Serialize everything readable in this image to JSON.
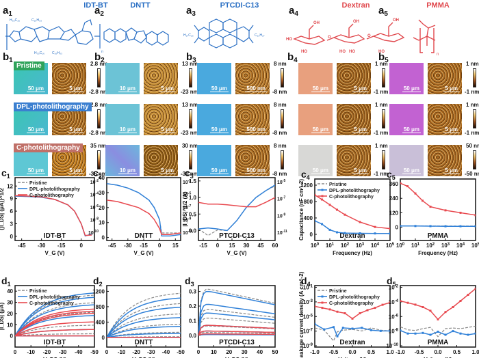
{
  "figure": {
    "row_a": {
      "panels": [
        {
          "label": "a",
          "sub": "1",
          "title": "IDT-BT",
          "color": "#2a6fc4",
          "substituents": [
            "H₃₃C₁₆",
            "C₁₆H₃₃",
            "H₃₃C₁₆",
            "C₁₆H₃₃"
          ],
          "repeat": "n"
        },
        {
          "label": "a",
          "sub": "2",
          "title": "DNTT",
          "color": "#2a6fc4"
        },
        {
          "label": "a",
          "sub": "3",
          "title": "PTCDI-C13",
          "color": "#2a6fc4",
          "substituents": [
            "H₂₇C₁₃",
            "C₁₃H₂₇"
          ]
        },
        {
          "label": "a",
          "sub": "4",
          "title": "Dextran",
          "color": "#e0474c",
          "groups": [
            "OH",
            "HO",
            "HO",
            "HO",
            "HO",
            "HO",
            "OH",
            "OH",
            "O",
            "O"
          ]
        },
        {
          "label": "a",
          "sub": "5",
          "title": "PMMA",
          "color": "#e0474c",
          "repeat": "n"
        }
      ]
    },
    "row_b": {
      "row_tags": [
        "Pristine",
        "DPL-photolithography",
        "C-photolithography"
      ],
      "panels": [
        {
          "label": "b",
          "sub": "1",
          "optical_scale": "50 μm",
          "afm_scale": "5 μm",
          "colorbars": [
            [
              "2.8 nm",
              "-2.8 nm"
            ],
            [
              "2.8 nm",
              "-2.8 nm"
            ],
            [
              "35 nm",
              "-35 nm"
            ]
          ]
        },
        {
          "label": "b",
          "sub": "2",
          "optical_scale": "10 μm",
          "afm_scale": "5 μm",
          "colorbars": [
            [
              "13 nm",
              "-23 nm"
            ],
            [
              "13 nm",
              "-23 nm"
            ],
            [
              "30 nm",
              "-30 nm"
            ]
          ]
        },
        {
          "label": "b",
          "sub": "3",
          "optical_scale": "50 μm",
          "afm_scale": "500 nm",
          "colorbars": [
            [
              "8 nm",
              "-8 nm"
            ],
            [
              "8 nm",
              "-8 nm"
            ],
            [
              "8 nm",
              "-8 nm"
            ]
          ]
        },
        {
          "label": "b",
          "sub": "4",
          "optical_scale": "50 μm",
          "afm_scale": "5 μm",
          "colorbars": [
            [
              "1 nm",
              "-1 nm"
            ],
            [
              "1 nm",
              "-1 nm"
            ],
            [
              "1 nm",
              "-1 nm"
            ]
          ]
        },
        {
          "label": "b",
          "sub": "5",
          "optical_scale": "50 μm",
          "afm_scale": "5 μm",
          "colorbars": [
            [
              "1 nm",
              "-1 nm"
            ],
            [
              "1 nm",
              "-1 nm"
            ],
            [
              "50 nm",
              "-50 nm"
            ]
          ]
        }
      ]
    },
    "legend": {
      "pristine": "Pristine",
      "dpl": "DPL-photolithography",
      "c": "C-photolithography"
    },
    "colors": {
      "pristine": "#888888",
      "dpl": "#2f80d8",
      "c": "#e8494f"
    }
  },
  "chart_data": [
    {
      "id": "c1",
      "type": "line",
      "label": "c",
      "sub": "1",
      "annotation": "IDT-BT",
      "xlabel": "V_G (V)",
      "ylabel": "(|I_DS| (μA))^1/2",
      "xlim": [
        -50,
        10
      ],
      "xticks": [
        -45,
        -30,
        -15,
        0
      ],
      "ylim": [
        -1,
        14
      ],
      "yticks": [
        0,
        3,
        6,
        9,
        12
      ],
      "series": [
        {
          "name": "Pristine",
          "x": [
            -50,
            -40,
            -30,
            -20,
            -10,
            -5,
            0,
            3,
            8
          ],
          "y": [
            9.6,
            9.5,
            9.3,
            8.8,
            7.5,
            6.0,
            3.0,
            0.1,
            0.5
          ]
        },
        {
          "name": "DPL-photolithography",
          "x": [
            -50,
            -40,
            -30,
            -20,
            -10,
            -5,
            0,
            3,
            8
          ],
          "y": [
            9.6,
            9.5,
            9.3,
            8.8,
            7.5,
            6.0,
            3.0,
            0.1,
            0.5
          ]
        },
        {
          "name": "C-photolithography",
          "x": [
            -50,
            -40,
            -30,
            -20,
            -10,
            -5,
            0,
            3,
            8
          ],
          "y": [
            9.7,
            9.6,
            9.4,
            8.8,
            7.5,
            6.0,
            3.0,
            0.2,
            0.3
          ]
        }
      ]
    },
    {
      "id": "c2",
      "type": "line",
      "label": "c",
      "sub": "2",
      "annotation": "DNTT",
      "xlabel": "V_G (V)",
      "ylabel": "",
      "xlim": [
        -50,
        20
      ],
      "xticks": [
        -45,
        -30,
        -15,
        0,
        15
      ],
      "ylim": [
        -2,
        40
      ],
      "yticks": [
        0,
        10,
        20,
        30,
        40
      ],
      "yticks_left_log": [
        "10^-10",
        "10^-8",
        "10^-6",
        "10^-4",
        "10^-2"
      ],
      "yticks_right": [
        "10^-11",
        "10^-9",
        "10^-7",
        "10^-5",
        "10^-3"
      ],
      "series": [
        {
          "name": "Pristine",
          "x": [
            -50,
            -40,
            -30,
            -20,
            -10,
            -5,
            0,
            2,
            10,
            20
          ],
          "y": [
            36,
            35,
            33,
            30,
            25,
            20,
            12,
            3,
            3,
            3
          ]
        },
        {
          "name": "DPL-photolithography",
          "x": [
            -50,
            -40,
            -30,
            -20,
            -10,
            -5,
            0,
            2,
            10,
            20
          ],
          "y": [
            36,
            35,
            33,
            30,
            25,
            20,
            12,
            1,
            1,
            2
          ]
        },
        {
          "name": "C-photolithography",
          "x": [
            -50,
            -40,
            -30,
            -20,
            -10,
            -5,
            0,
            2,
            10,
            20
          ],
          "y": [
            25,
            24,
            22,
            20,
            16,
            12,
            6,
            2,
            2,
            3
          ]
        }
      ]
    },
    {
      "id": "c3",
      "type": "line",
      "label": "c",
      "sub": "3",
      "annotation": "PTCDI-C13",
      "xlabel": "V_G (V)",
      "ylabel": "|I_DS|^1/2 (A)",
      "xlim": [
        -20,
        60
      ],
      "xticks": [
        -15,
        0,
        15,
        30,
        45,
        60
      ],
      "ylim": [
        -0.3,
        1.6
      ],
      "yticks": [
        0.0,
        0.5,
        1.0,
        1.5
      ],
      "yticks_right": [
        "10^-11",
        "10^-9",
        "10^-7",
        "10^-5"
      ],
      "series": [
        {
          "name": "Pristine",
          "x": [
            -20,
            -10,
            0,
            10,
            20,
            30,
            40,
            50,
            60
          ],
          "y": [
            0.05,
            -0.15,
            0.02,
            0.0,
            0.3,
            0.7,
            1.0,
            1.2,
            1.35
          ]
        },
        {
          "name": "DPL-photolithography",
          "x": [
            -20,
            -10,
            0,
            10,
            20,
            30,
            40,
            50,
            60
          ],
          "y": [
            0.05,
            0.08,
            0.05,
            0.0,
            0.3,
            0.7,
            1.0,
            1.2,
            1.38
          ]
        },
        {
          "name": "C-photolithography",
          "x": [
            -20,
            -10,
            0,
            10,
            20,
            30,
            40,
            50,
            60
          ],
          "y": [
            0.85,
            0.8,
            0.8,
            0.78,
            0.75,
            0.72,
            0.72,
            0.85,
            1.0
          ]
        }
      ]
    },
    {
      "id": "c4",
      "type": "line",
      "label": "c",
      "sub": "4",
      "annotation": "Dextran",
      "xlabel": "Frequency (Hz)",
      "ylabel": "Capacitance (nF cm^-2)",
      "xscale": "log",
      "xlim": [
        1,
        100000
      ],
      "xticks": [
        "10^0",
        "10^1",
        "10^2",
        "10^3",
        "10^4",
        "10^5"
      ],
      "ylim": [
        -150,
        1350
      ],
      "yticks": [
        0,
        400,
        800,
        1200
      ],
      "series": [
        {
          "name": "Pristine",
          "x": [
            1,
            3,
            10,
            30,
            100,
            1000,
            10000,
            100000
          ],
          "y": [
            330,
            250,
            110,
            50,
            30,
            25,
            22,
            20
          ]
        },
        {
          "name": "DPL-photolithography",
          "x": [
            1,
            3,
            10,
            30,
            100,
            1000,
            10000,
            100000
          ],
          "y": [
            330,
            250,
            110,
            50,
            30,
            25,
            22,
            20
          ]
        },
        {
          "name": "C-photolithography",
          "x": [
            1,
            3,
            10,
            30,
            100,
            1000,
            10000,
            100000
          ],
          "y": [
            960,
            850,
            720,
            600,
            480,
            300,
            180,
            140
          ]
        }
      ]
    },
    {
      "id": "c5",
      "type": "line",
      "label": "c",
      "sub": "5",
      "annotation": "PMMA",
      "xlabel": "Frequency (Hz)",
      "ylabel": "",
      "xscale": "log",
      "xlim": [
        1,
        100000
      ],
      "xticks": [
        "10^0",
        "10^1",
        "10^2",
        "10^3",
        "10^4",
        "10^5"
      ],
      "ylim": [
        -110,
        400
      ],
      "yticks": [
        0,
        120,
        240,
        360
      ],
      "series": [
        {
          "name": "Pristine",
          "x": [
            1,
            10,
            100,
            1000,
            10000,
            100000
          ],
          "y": [
            10,
            10,
            10,
            10,
            10,
            10
          ]
        },
        {
          "name": "DPL-photolithography",
          "x": [
            1,
            10,
            100,
            1000,
            10000,
            100000
          ],
          "y": [
            10,
            10,
            9,
            8,
            8,
            8
          ]
        },
        {
          "name": "C-photolithography",
          "x": [
            1,
            3,
            10,
            30,
            100,
            1000,
            10000,
            100000
          ],
          "y": [
            365,
            340,
            280,
            220,
            170,
            140,
            120,
            100
          ]
        }
      ]
    },
    {
      "id": "d1",
      "type": "line",
      "label": "d",
      "sub": "1",
      "annotation": "IDT-BT",
      "xlabel": "V_DS (V)",
      "ylabel": "|I_DS| (μA)",
      "xlim": [
        0,
        -50
      ],
      "xticks": [
        0,
        -10,
        -20,
        -30,
        -40,
        -50
      ],
      "ylim": [
        -10,
        45
      ],
      "yticks": [
        0,
        10,
        20,
        30,
        40
      ],
      "series": [
        {
          "name": "Pristine",
          "curves_sat": [
            38,
            31,
            22,
            10,
            2
          ]
        },
        {
          "name": "DPL-photolithography",
          "curves_sat": [
            40,
            36,
            29,
            19,
            6,
            0
          ]
        },
        {
          "name": "C-photolithography",
          "curves_sat": [
            25,
            23,
            21,
            13,
            6,
            0
          ]
        }
      ]
    },
    {
      "id": "d2",
      "type": "line",
      "label": "d",
      "sub": "2",
      "annotation": "DNTT",
      "xlabel": "V_DS (V)",
      "ylabel": "",
      "xlim": [
        0,
        -50
      ],
      "xticks": [
        0,
        -10,
        -20,
        -30,
        -40,
        -50
      ],
      "ylim": [
        -250,
        1350
      ],
      "yticks": [
        0,
        400,
        800,
        1200
      ],
      "series": [
        {
          "name": "Pristine",
          "curves_sat": [
            1200,
            920,
            640,
            360,
            140,
            20
          ]
        },
        {
          "name": "DPL-photolithography",
          "curves_sat": [
            1070,
            820,
            540,
            300,
            110,
            0
          ]
        },
        {
          "name": "C-photolithography",
          "curves_sat": [
            0
          ]
        }
      ]
    },
    {
      "id": "d3",
      "type": "line",
      "label": "d",
      "sub": "3",
      "annotation": "PTCDI-C13",
      "xlabel": "V_DS (V)",
      "ylabel": "",
      "xlim": [
        0,
        50
      ],
      "xticks": [
        0,
        10,
        20,
        30,
        40,
        50
      ],
      "ylim": [
        -0.08,
        0.34
      ],
      "yticks": [
        0.0,
        0.1,
        0.2,
        0.3
      ],
      "series": [
        {
          "name": "Pristine",
          "curves_peak": [
            0.32,
            0.18,
            0.12,
            0.065,
            0.02
          ]
        },
        {
          "name": "DPL-photolithography",
          "curves_peak": [
            0.305,
            0.215,
            0.155,
            0.07,
            0.03,
            0.005
          ]
        },
        {
          "name": "C-photolithography",
          "curves_peak": [
            0.07,
            0.03,
            0.01
          ]
        }
      ]
    },
    {
      "id": "d4",
      "type": "line",
      "label": "d",
      "sub": "4",
      "annotation": "Dextran",
      "xlabel": "Voltage (V)",
      "ylabel": "Leakage current density (A cm^-2)",
      "yscale": "log",
      "xlim": [
        -1,
        1
      ],
      "xticks": [
        -1.0,
        -0.5,
        0.0,
        0.5,
        1.0
      ],
      "ylim_exp": [
        -9,
        -1
      ],
      "yticks": [
        "10^-9",
        "10^-7",
        "10^-5",
        "10^-3",
        "10^-1"
      ],
      "series": [
        {
          "name": "Pristine",
          "x": [
            -1,
            -0.75,
            -0.5,
            -0.4,
            -0.25,
            0,
            0.25,
            0.5,
            0.75,
            1
          ],
          "logy": [
            -6.5,
            -6.8,
            -8.2,
            -7.0,
            -6.8,
            -6.7,
            -6.9,
            -6.5,
            -6.8,
            -6.9
          ]
        },
        {
          "name": "DPL-photolithography",
          "x": [
            -1,
            -0.75,
            -0.5,
            -0.4,
            -0.25,
            0,
            0.25,
            0.5,
            0.75,
            1
          ],
          "logy": [
            -6.0,
            -6.7,
            -6.4,
            -7.6,
            -6.5,
            -6.6,
            -6.5,
            -6.8,
            -6.9,
            -6.9
          ]
        },
        {
          "name": "C-photolithography",
          "x": [
            -1,
            -0.8,
            -0.6,
            -0.4,
            -0.2,
            0,
            0.2,
            0.4,
            0.6,
            0.8,
            1
          ],
          "logy": [
            -3.7,
            -3.9,
            -4.1,
            -4.4,
            -4.6,
            -5.3,
            -4.6,
            -4.2,
            -3.9,
            -3.5,
            -3.2
          ]
        }
      ]
    },
    {
      "id": "d5",
      "type": "line",
      "label": "d",
      "sub": "5",
      "annotation": "PMMA",
      "xlabel": "Voltage (V)",
      "ylabel": "",
      "yscale": "log",
      "xlim": [
        -1,
        1
      ],
      "xticks": [
        -1.0,
        -0.5,
        0.0,
        0.5,
        1.0
      ],
      "ylim_exp": [
        -11.5,
        -1.5
      ],
      "yticks": [
        "10^-10",
        "10^-8",
        "10^-6",
        "10^-4",
        "10^-2"
      ],
      "series": [
        {
          "name": "Pristine",
          "x": [
            -1,
            -0.8,
            -0.6,
            -0.4,
            -0.2,
            0,
            0.2,
            0.4,
            0.6,
            0.8,
            1
          ],
          "logy": [
            -8.2,
            -8.7,
            -8.8,
            -8.5,
            -8.3,
            -9.8,
            -8.5,
            -8.4,
            -8.5,
            -8.3,
            -8.1
          ]
        },
        {
          "name": "DPL-photolithography",
          "x": [
            -1,
            -0.8,
            -0.6,
            -0.4,
            -0.2,
            0,
            0.2,
            0.4,
            0.6,
            0.8,
            1
          ],
          "logy": [
            -8.8,
            -9.3,
            -9.3,
            -9.2,
            -9.5,
            -9.0,
            -9.5,
            -8.9,
            -9.3,
            -9.5,
            -9.3
          ]
        },
        {
          "name": "C-photolithography",
          "x": [
            -1,
            -0.8,
            -0.6,
            -0.4,
            -0.2,
            0,
            0.2,
            0.4,
            0.6,
            0.8,
            1
          ],
          "logy": [
            -4.0,
            -4.3,
            -4.6,
            -5.0,
            -5.6,
            -7.0,
            -5.8,
            -5.0,
            -4.0,
            -3.0,
            -2.0
          ]
        }
      ]
    }
  ]
}
